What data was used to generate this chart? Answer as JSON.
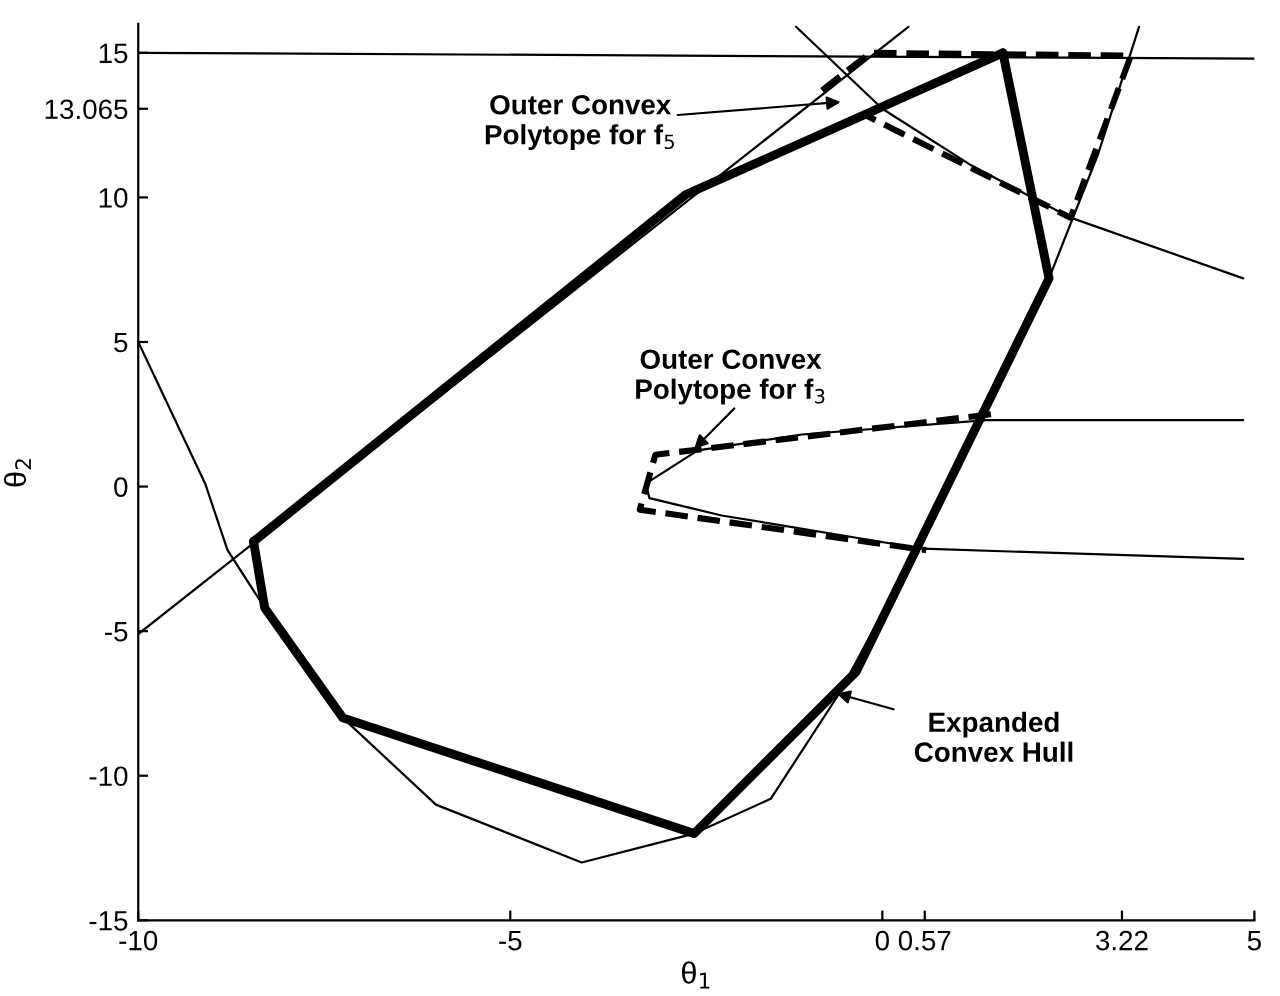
{
  "chart_data": {
    "type": "line",
    "xlabel": "θ$_{1}$",
    "ylabel": "θ$_{2}$",
    "xlim": [
      -10,
      5
    ],
    "ylim": [
      -15,
      16
    ],
    "xticks": [
      -10,
      -5,
      0,
      0.57,
      3.22,
      5
    ],
    "yticks": [
      -15,
      -10,
      -5,
      0,
      5,
      10,
      13.065,
      15
    ],
    "grid": false,
    "legend": false,
    "series": [
      {
        "color": "#000000",
        "line_style": "solid",
        "x": [
          -10,
          -9.1,
          -8.8,
          -8.3,
          -7.25,
          -6,
          -4.04,
          -2.53,
          -1.5,
          -0.59,
          0.5,
          1.3,
          2.24,
          2.9,
          3.45
        ],
        "values": [
          5,
          0.1,
          -2.2,
          -4.2,
          -8.0,
          -11,
          -13.0,
          -12.0,
          -10.8,
          -7.2,
          -2.0,
          2.3,
          7.2,
          11.5,
          15.9
        ]
      },
      {
        "color": "#000000",
        "line_style": "solid",
        "x": [
          -10,
          0.35
        ],
        "values": [
          -5.1,
          15.9
        ]
      },
      {
        "color": "#000000",
        "line_style": "solid",
        "x": [
          -10,
          5
        ],
        "values": [
          15.0,
          14.8
        ]
      },
      {
        "color": "#000000",
        "line_style": "solid",
        "x": [
          -1.16,
          0,
          1.2,
          2.53,
          4.85
        ],
        "values": [
          15.9,
          13.065,
          11.1,
          9.3,
          7.2
        ]
      },
      {
        "color": "#000000",
        "line_style": "solid",
        "x": [
          4.85,
          1.4,
          -1.08,
          -2.48,
          -3.18,
          -3.13,
          -2.16,
          0.54,
          4.85
        ],
        "values": [
          2.3,
          2.3,
          1.8,
          1.25,
          0.1,
          -0.4,
          -1.0,
          -2.15,
          -2.5
        ]
      },
      {
        "color": "#000000",
        "line_style": "dashed",
        "x": [
          1.46,
          -3.05,
          -3.26,
          0.59
        ],
        "values": [
          2.5,
          1.1,
          -0.8,
          -2.2
        ]
      },
      {
        "color": "#000000",
        "line_style": "dashed",
        "x": [
          -0.81,
          -0.16,
          3.34,
          2.53,
          -0.27
        ],
        "values": [
          13.7,
          15,
          14.9,
          9.3,
          12.9
        ]
      },
      {
        "color": "#000000",
        "line_style": "solid",
        "x": [
          1.62,
          2.24,
          -0.35,
          -2.53,
          -7.25,
          -8.3,
          -8.45
        ],
        "values": [
          15,
          7.2,
          -6.4,
          -12.0,
          -8.0,
          -4.2,
          -1.9
        ]
      },
      {
        "color": "#000000",
        "line_style": "solid",
        "x": [
          -8.45,
          -2.64,
          1.62
        ],
        "values": [
          -1.9,
          10.1,
          15
        ]
      }
    ],
    "annotations": [
      "Outer Convex\nPolytope for f$_{5}$",
      "Outer Convex\nPolytope for f$_{3}$",
      "Expanded\nConvex Hull"
    ]
  }
}
